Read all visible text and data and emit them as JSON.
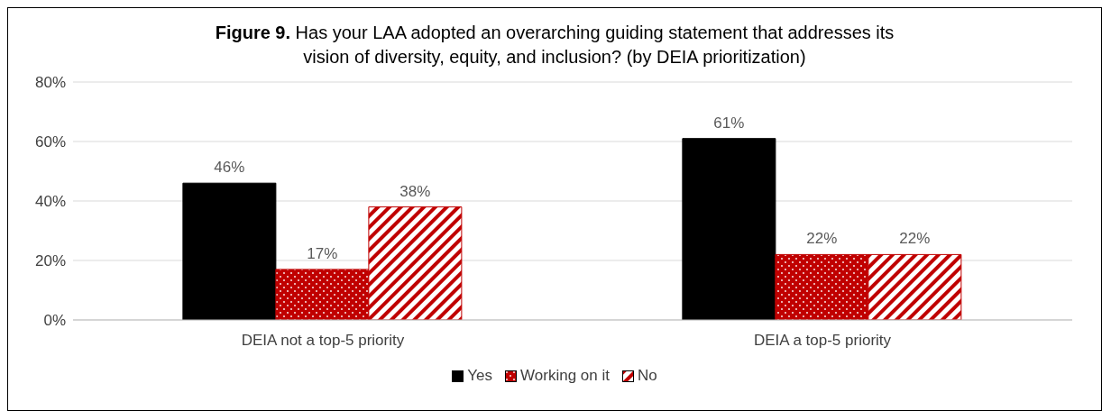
{
  "chart_data": {
    "type": "bar",
    "title": "Figure 9. Has your LAA adopted an overarching guiding statement that addresses its vision of diversity, equity, and inclusion? (by DEIA prioritization)",
    "categories": [
      "DEIA not a top-5 priority",
      "DEIA a top-5 priority"
    ],
    "series": [
      {
        "name": "Yes",
        "color": "#000000",
        "values": [
          46,
          61
        ]
      },
      {
        "name": "Working on it",
        "color": "#c00000",
        "values": [
          17,
          22
        ]
      },
      {
        "name": "No",
        "color": "#c00000",
        "values": [
          38,
          22
        ]
      }
    ],
    "ylim": [
      0,
      80
    ],
    "yticks": [
      {
        "value": 0,
        "label": "0%"
      },
      {
        "value": 20,
        "label": "20%"
      },
      {
        "value": 40,
        "label": "40%"
      },
      {
        "value": 60,
        "label": "60%"
      },
      {
        "value": 80,
        "label": "80%"
      }
    ],
    "grid": "y",
    "legend": "bottom",
    "value_labels": [
      [
        "46%",
        "61%"
      ],
      [
        "17%",
        "22%"
      ],
      [
        "38%",
        "22%"
      ]
    ]
  }
}
